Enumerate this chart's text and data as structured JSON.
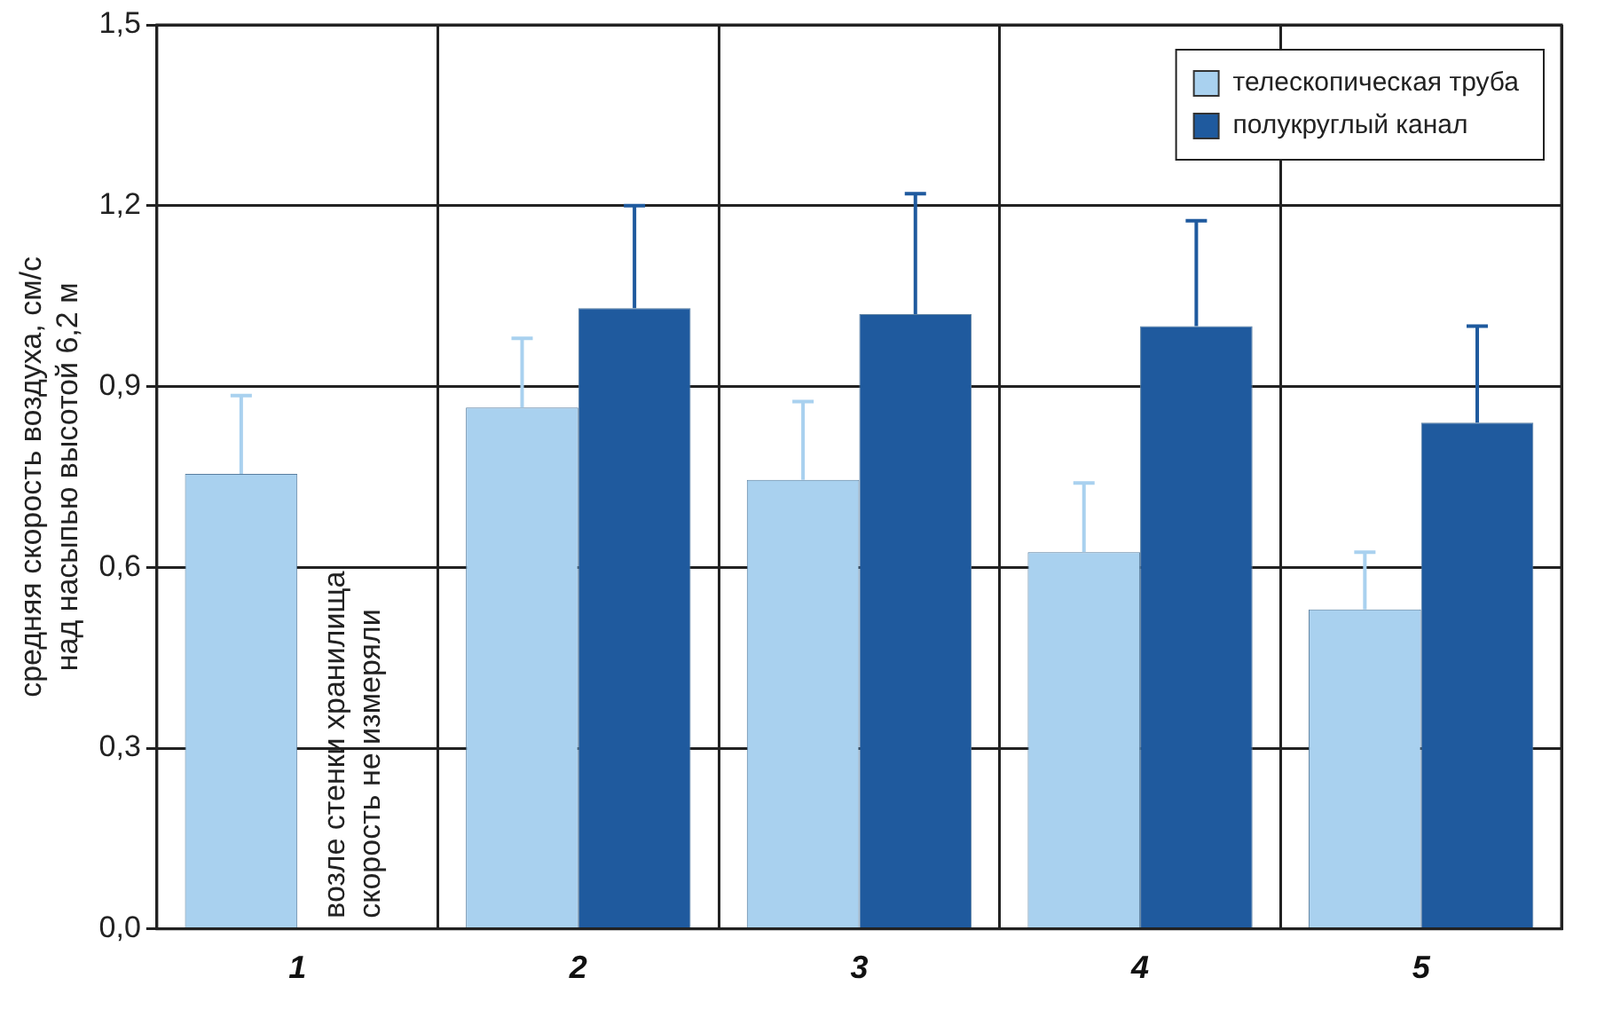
{
  "chart_data": {
    "type": "bar",
    "ylabel": "средняя скорость воздуха, см/с\nнад насыпью высотой 6,2 м",
    "categories": [
      "1",
      "2",
      "3",
      "4",
      "5"
    ],
    "series": [
      {
        "name": "телескопическая труба",
        "color": "#a9d1ef",
        "values": [
          0.755,
          0.865,
          0.745,
          0.625,
          0.53
        ],
        "errors": [
          [
            0.755,
            0.885
          ],
          [
            0.865,
            0.98
          ],
          [
            0.745,
            0.875
          ],
          [
            0.625,
            0.74
          ],
          [
            0.53,
            0.625
          ]
        ]
      },
      {
        "name": "полукруглый канал",
        "color": "#1f5a9e",
        "values": [
          null,
          1.03,
          1.02,
          1.0,
          0.84
        ],
        "errors": [
          null,
          [
            1.03,
            1.2
          ],
          [
            1.02,
            1.22
          ],
          [
            1.0,
            1.175
          ],
          [
            0.84,
            1.0
          ]
        ]
      }
    ],
    "annotations": [
      "возле стенки хранилища\nскорость не измеряли"
    ],
    "ylim": [
      0,
      1.5
    ],
    "yticks": [
      {
        "value": 0,
        "label": "0,0"
      },
      {
        "value": 0.3,
        "label": "0,3"
      },
      {
        "value": 0.6,
        "label": "0,6"
      },
      {
        "value": 0.9,
        "label": "0,9"
      },
      {
        "value": 1.2,
        "label": "1,2"
      },
      {
        "value": 1.5,
        "label": "1,5"
      }
    ],
    "grid": true,
    "legend": "top right"
  }
}
